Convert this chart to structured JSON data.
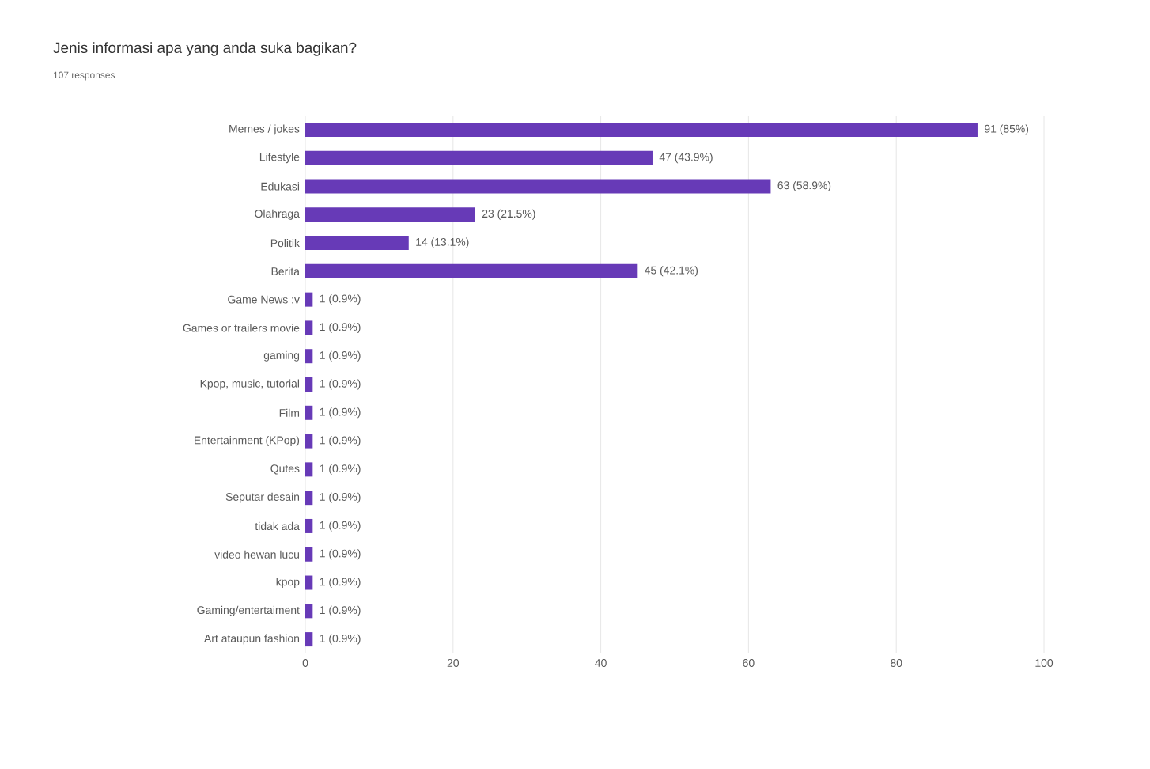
{
  "chart_data": {
    "type": "bar",
    "orientation": "horizontal",
    "title": "Jenis informasi apa yang anda suka bagikan?",
    "subtitle": "107 responses",
    "categories": [
      "Memes / jokes",
      "Lifestyle",
      "Edukasi",
      "Olahraga",
      "Politik",
      "Berita",
      "Game News :v",
      "Games or trailers movie",
      "gaming",
      "Kpop, music, tutorial",
      "Film",
      "Entertainment (KPop)",
      "Qutes",
      "Seputar desain",
      "tidak ada",
      "video hewan lucu",
      "kpop",
      "Gaming/entertaiment",
      "Art ataupun fashion"
    ],
    "values": [
      91,
      47,
      63,
      23,
      14,
      45,
      1,
      1,
      1,
      1,
      1,
      1,
      1,
      1,
      1,
      1,
      1,
      1,
      1
    ],
    "value_labels": [
      "91 (85%)",
      "47 (43.9%)",
      "63 (58.9%)",
      "23 (21.5%)",
      "14 (13.1%)",
      "45 (42.1%)",
      "1 (0.9%)",
      "1 (0.9%)",
      "1 (0.9%)",
      "1 (0.9%)",
      "1 (0.9%)",
      "1 (0.9%)",
      "1 (0.9%)",
      "1 (0.9%)",
      "1 (0.9%)",
      "1 (0.9%)",
      "1 (0.9%)",
      "1 (0.9%)",
      "1 (0.9%)"
    ],
    "color": "#673ab7",
    "xlim": [
      0,
      100
    ],
    "xticks": [
      0,
      20,
      40,
      60,
      80,
      100
    ],
    "grid": "x"
  }
}
